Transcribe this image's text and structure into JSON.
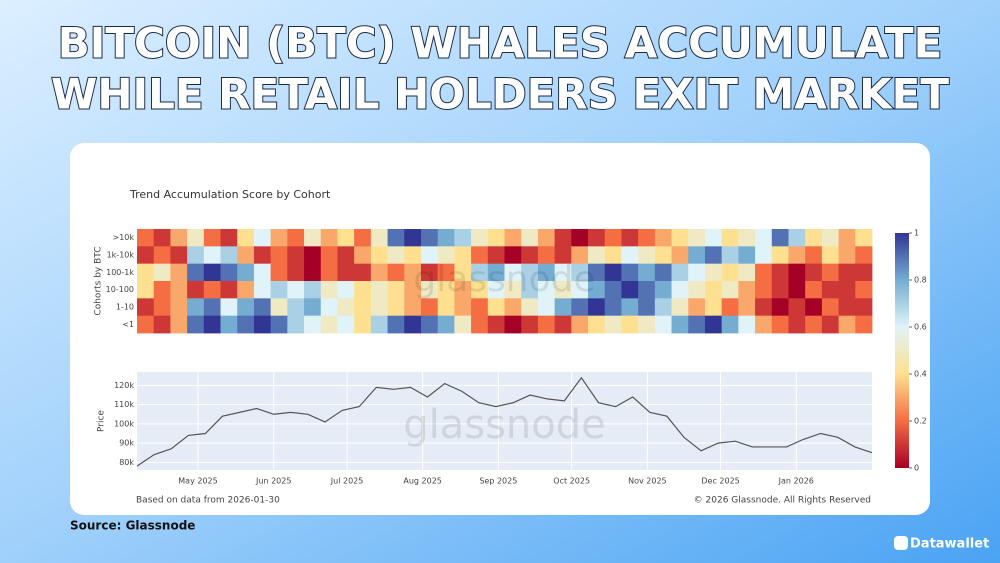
{
  "header": {
    "title_lines": [
      "BITCOIN (BTC) WHALES ACCUMULATE",
      "WHILE RETAIL HOLDERS EXIT MARKET"
    ],
    "source": "Source: Glassnode",
    "brand": "Datawallet"
  },
  "chart_data": [
    {
      "type": "heatmap",
      "title": "Trend Accumulation Score by Cohort",
      "y_label": "Cohorts by BTC",
      "watermark": "glassnode",
      "zlim": [
        0,
        1
      ],
      "colorbar_ticks": [
        0,
        0.2,
        0.4,
        0.6,
        0.8,
        1
      ],
      "colorscale": [
        "#a50026",
        "#f46d43",
        "#fee090",
        "#e0f3f8",
        "#74add1",
        "#313695"
      ],
      "series": [
        {
          "name": ">10k",
          "values": [
            0.2,
            0.1,
            0.3,
            0.5,
            0.2,
            0.1,
            0.4,
            0.6,
            0.3,
            0.2,
            0.5,
            0.3,
            0.4,
            0.2,
            0.5,
            0.9,
            1.0,
            0.9,
            0.8,
            0.7,
            0.5,
            0.4,
            0.3,
            0.5,
            0.3,
            0.1,
            0.0,
            0.1,
            0.2,
            0.1,
            0.2,
            0.3,
            0.4,
            0.5,
            0.6,
            0.4,
            0.5,
            0.6,
            0.9,
            0.7,
            0.4,
            0.5,
            0.3,
            0.4
          ]
        },
        {
          "name": "1k-10k",
          "values": [
            0.1,
            0.2,
            0.1,
            0.7,
            0.6,
            0.7,
            0.3,
            0.1,
            0.2,
            0.1,
            0.0,
            0.2,
            0.1,
            0.3,
            0.4,
            0.5,
            0.4,
            0.6,
            0.5,
            0.4,
            0.2,
            0.1,
            0.0,
            0.1,
            0.2,
            0.1,
            0.3,
            0.5,
            0.4,
            0.6,
            0.5,
            0.4,
            0.3,
            0.8,
            0.9,
            0.7,
            0.8,
            0.6,
            0.4,
            0.3,
            0.2,
            0.4,
            0.3,
            0.2
          ]
        },
        {
          "name": "100-1k",
          "values": [
            0.4,
            0.5,
            0.3,
            0.9,
            1.0,
            0.9,
            0.8,
            0.6,
            0.2,
            0.1,
            0.0,
            0.2,
            0.1,
            0.1,
            0.3,
            0.2,
            0.3,
            0.1,
            0.2,
            0.4,
            0.7,
            0.8,
            0.6,
            0.7,
            0.8,
            0.6,
            0.7,
            0.9,
            1.0,
            0.9,
            0.8,
            0.9,
            0.7,
            0.6,
            0.5,
            0.4,
            0.5,
            0.2,
            0.1,
            0.0,
            0.1,
            0.2,
            0.1,
            0.1
          ]
        },
        {
          "name": "10-100",
          "values": [
            0.4,
            0.2,
            0.3,
            0.1,
            0.2,
            0.1,
            0.3,
            0.6,
            0.7,
            0.6,
            0.7,
            0.5,
            0.6,
            0.4,
            0.5,
            0.4,
            0.3,
            0.5,
            0.4,
            0.3,
            0.4,
            0.6,
            0.5,
            0.7,
            0.6,
            0.5,
            0.6,
            0.8,
            0.9,
            1.0,
            0.9,
            0.8,
            0.6,
            0.5,
            0.4,
            0.5,
            0.3,
            0.2,
            0.1,
            0.0,
            0.2,
            0.1,
            0.1,
            0.2
          ]
        },
        {
          "name": "1-10",
          "values": [
            0.1,
            0.2,
            0.3,
            0.8,
            0.9,
            0.6,
            0.8,
            0.9,
            0.5,
            0.7,
            0.8,
            0.6,
            0.5,
            0.4,
            0.5,
            0.4,
            0.3,
            0.2,
            0.4,
            0.3,
            0.2,
            0.4,
            0.3,
            0.5,
            0.6,
            0.8,
            0.9,
            1.0,
            0.9,
            0.8,
            0.9,
            0.7,
            0.5,
            0.3,
            0.4,
            0.2,
            0.3,
            0.1,
            0.0,
            0.1,
            0.0,
            0.2,
            0.1,
            0.1
          ]
        },
        {
          "name": "<1",
          "values": [
            0.2,
            0.1,
            0.3,
            0.9,
            1.0,
            0.8,
            0.9,
            1.0,
            0.9,
            0.7,
            0.6,
            0.5,
            0.6,
            0.4,
            0.7,
            0.9,
            1.0,
            0.9,
            0.8,
            0.5,
            0.2,
            0.1,
            0.0,
            0.1,
            0.2,
            0.1,
            0.3,
            0.4,
            0.5,
            0.4,
            0.5,
            0.6,
            0.8,
            0.9,
            1.0,
            0.8,
            0.6,
            0.3,
            0.2,
            0.1,
            0.2,
            0.1,
            0.3,
            0.2
          ]
        }
      ]
    },
    {
      "type": "line",
      "y_label": "Price",
      "watermark": "glassnode",
      "color": "#555555",
      "grid": true,
      "values": [
        78000,
        84000,
        87000,
        94000,
        95000,
        104000,
        106000,
        108000,
        105000,
        106000,
        105000,
        101000,
        107000,
        109000,
        119000,
        118000,
        119000,
        114000,
        121000,
        117000,
        111000,
        109000,
        111000,
        115000,
        113000,
        112000,
        124000,
        111000,
        109000,
        114000,
        106000,
        104000,
        93000,
        86000,
        90000,
        91000,
        88000,
        88000,
        88000,
        92000,
        95000,
        93000,
        88000,
        85000
      ],
      "xlim": [
        0,
        43
      ],
      "xticks": [
        {
          "value": 3.57,
          "label": "May 2025"
        },
        {
          "value": 8.0,
          "label": "Jun 2025"
        },
        {
          "value": 12.29,
          "label": "Jul 2025"
        },
        {
          "value": 16.71,
          "label": "Aug 2025"
        },
        {
          "value": 21.14,
          "label": "Sep 2025"
        },
        {
          "value": 25.43,
          "label": "Oct 2025"
        },
        {
          "value": 29.86,
          "label": "Nov 2025"
        },
        {
          "value": 34.14,
          "label": "Dec 2025"
        },
        {
          "value": 38.57,
          "label": "Jan 2026"
        }
      ],
      "ylim": [
        76000,
        127000
      ],
      "yticks": [
        {
          "value": 80000,
          "label": "80k"
        },
        {
          "value": 90000,
          "label": "90k"
        },
        {
          "value": 100000,
          "label": "100k"
        },
        {
          "value": 110000,
          "label": "110k"
        },
        {
          "value": 120000,
          "label": "120k"
        }
      ],
      "note": "Based on data from 2026-01-30",
      "copyright": "© 2026 Glassnode. All Rights Reserved"
    }
  ]
}
